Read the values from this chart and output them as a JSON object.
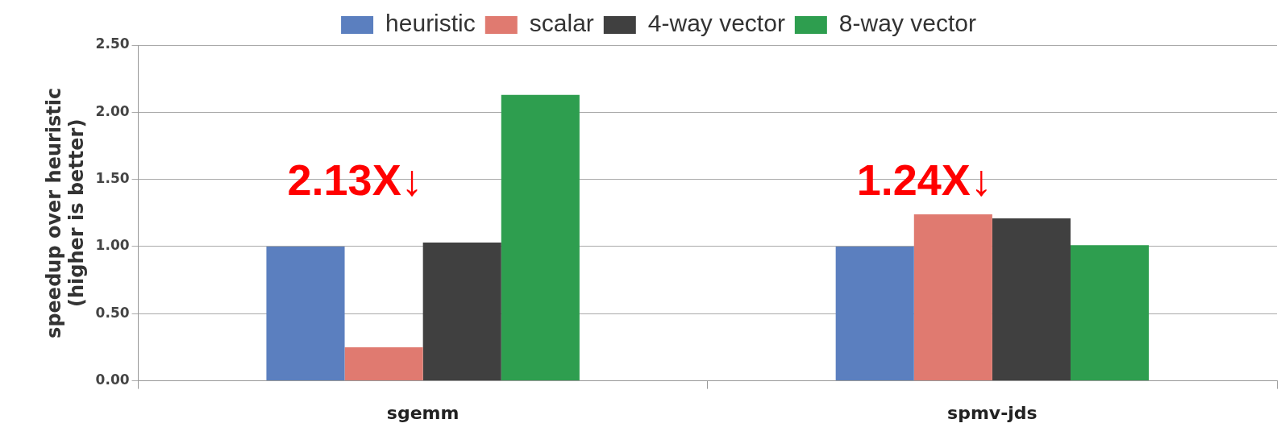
{
  "chart_data": {
    "type": "bar",
    "ylabel": "speedup over heuristic\n(higher is better)",
    "categories": [
      "sgemm",
      "spmv-jds"
    ],
    "series": [
      {
        "name": "heuristic",
        "color": "#5b7fbf",
        "values": [
          1.0,
          1.0
        ]
      },
      {
        "name": "scalar",
        "color": "#e07a70",
        "values": [
          0.25,
          1.24
        ]
      },
      {
        "name": "4-way vector",
        "color": "#404040",
        "values": [
          1.03,
          1.21
        ]
      },
      {
        "name": "8-way vector",
        "color": "#2e9e4f",
        "values": [
          2.13,
          1.01
        ]
      }
    ],
    "ylim": [
      0,
      2.5
    ],
    "yticks": [
      {
        "value": 0,
        "label": "0.00"
      },
      {
        "value": 0.5,
        "label": "0.50"
      },
      {
        "value": 1,
        "label": "1.00"
      },
      {
        "value": 1.5,
        "label": "1.50"
      },
      {
        "value": 2,
        "label": "2.00"
      },
      {
        "value": 2.5,
        "label": "2.50"
      }
    ],
    "grid": "y",
    "legend": "top",
    "annotations": [
      "2.13X↓",
      "1.24X↓"
    ]
  }
}
